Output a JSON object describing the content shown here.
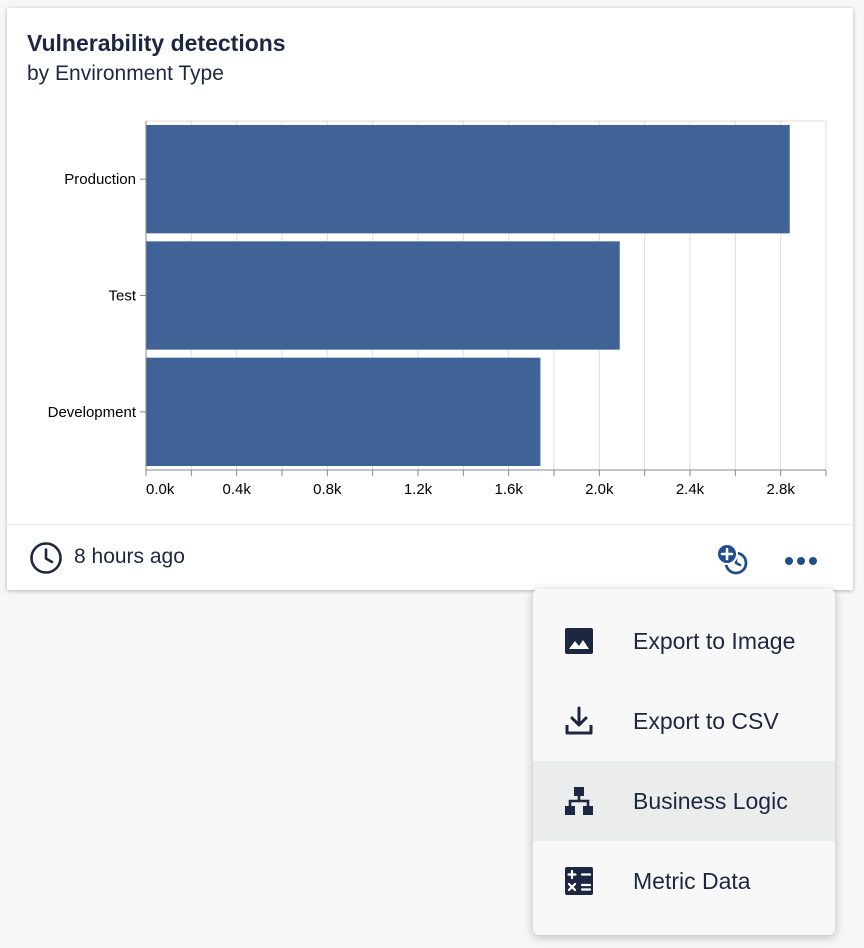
{
  "card": {
    "title": "Vulnerability detections",
    "subtitle": "by Environment Type",
    "updated": "8 hours ago"
  },
  "chart_data": {
    "type": "bar",
    "orientation": "horizontal",
    "title": "Vulnerability detections",
    "subtitle": "by Environment Type",
    "categories": [
      "Production",
      "Test",
      "Development"
    ],
    "values": [
      2840,
      2090,
      1740
    ],
    "xlim": [
      0,
      3000
    ],
    "x_ticks": [
      0,
      400,
      800,
      1200,
      1600,
      2000,
      2400,
      2800
    ],
    "x_tick_labels": [
      "0.0k",
      "0.4k",
      "0.8k",
      "1.2k",
      "1.6k",
      "2.0k",
      "2.4k",
      "2.8k"
    ],
    "xlabel": "",
    "ylabel": "",
    "grid": "vertical",
    "bar_color": "#3f6396"
  },
  "menu": {
    "items": [
      {
        "label": "Export to Image",
        "icon": "image-icon"
      },
      {
        "label": "Export to CSV",
        "icon": "download-icon"
      },
      {
        "label": "Business Logic",
        "icon": "hierarchy-icon"
      },
      {
        "label": "Metric Data",
        "icon": "calculator-icon"
      }
    ]
  },
  "colors": {
    "text": "#1c2742",
    "bar": "#3f6396",
    "accent": "#1f4e8c",
    "menu_highlight": "#ebecec"
  }
}
